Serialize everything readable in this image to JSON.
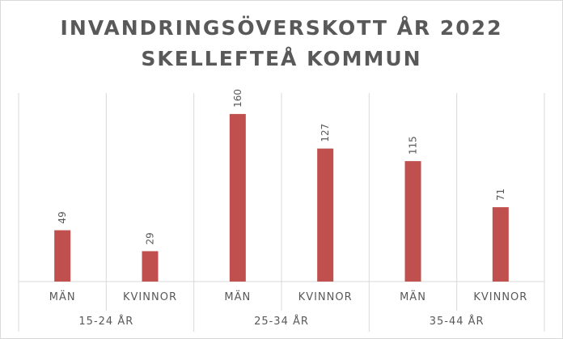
{
  "chart_data": {
    "type": "bar",
    "title": "INVANDRINGSÖVERSKOTT ÅR 2022",
    "subtitle": "SKELLEFTEÅ KOMMUN",
    "xlabel": "",
    "ylabel": "",
    "groups": [
      "15-24 ÅR",
      "25-34 ÅR",
      "35-44 ÅR"
    ],
    "categories": [
      "MÄN",
      "KVINNOR",
      "MÄN",
      "KVINNOR",
      "MÄN",
      "KVINNOR"
    ],
    "values": [
      49,
      29,
      160,
      127,
      115,
      71
    ],
    "data_labels": [
      "49",
      "29",
      "160",
      "127",
      "115",
      "71"
    ],
    "ylim": [
      0,
      180
    ],
    "grid": false,
    "legend": "none",
    "bar_color": "#c0504d"
  }
}
